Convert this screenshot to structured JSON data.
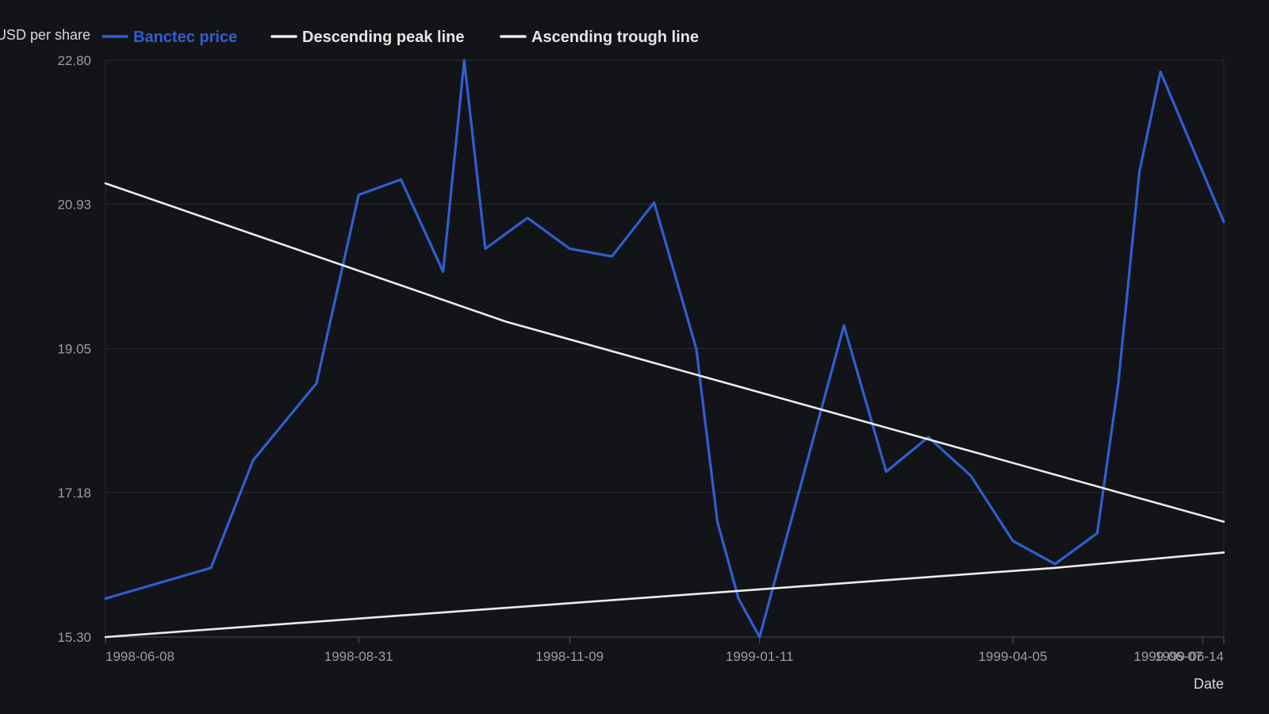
{
  "chart_data": {
    "type": "line",
    "ylabel": "USD per share",
    "xlabel": "Date",
    "ylim": [
      15.3,
      22.8
    ],
    "xlim": [
      "1998-06-08",
      "1999-06-14"
    ],
    "grid": true,
    "legend_position": "top-left",
    "y_ticks": [
      "15.30",
      "17.18",
      "19.05",
      "20.93",
      "22.80"
    ],
    "x_ticks": [
      "1998-06-08",
      "1998-08-31",
      "1998-11-09",
      "1999-01-11",
      "1999-04-05",
      "1999-06-07",
      "1999-06-14"
    ],
    "series": [
      {
        "name": "Banctec price",
        "color": "#2f5fd0",
        "points": [
          {
            "x": "1998-06-08",
            "y": 15.8
          },
          {
            "x": "1998-07-13",
            "y": 16.2
          },
          {
            "x": "1998-07-27",
            "y": 17.6
          },
          {
            "x": "1998-08-17",
            "y": 18.6
          },
          {
            "x": "1998-08-31",
            "y": 21.05
          },
          {
            "x": "1998-09-14",
            "y": 21.25
          },
          {
            "x": "1998-09-28",
            "y": 20.05
          },
          {
            "x": "1998-10-05",
            "y": 22.8
          },
          {
            "x": "1998-10-12",
            "y": 20.35
          },
          {
            "x": "1998-10-26",
            "y": 20.75
          },
          {
            "x": "1998-11-09",
            "y": 20.35
          },
          {
            "x": "1998-11-23",
            "y": 20.25
          },
          {
            "x": "1998-12-07",
            "y": 20.95
          },
          {
            "x": "1998-12-21",
            "y": 19.05
          },
          {
            "x": "1998-12-28",
            "y": 16.8
          },
          {
            "x": "1999-01-04",
            "y": 15.8
          },
          {
            "x": "1999-01-11",
            "y": 15.3
          },
          {
            "x": "1999-02-08",
            "y": 19.35
          },
          {
            "x": "1999-02-22",
            "y": 17.45
          },
          {
            "x": "1999-03-08",
            "y": 17.9
          },
          {
            "x": "1999-03-22",
            "y": 17.4
          },
          {
            "x": "1999-04-05",
            "y": 16.55
          },
          {
            "x": "1999-04-19",
            "y": 16.25
          },
          {
            "x": "1999-05-03",
            "y": 16.65
          },
          {
            "x": "1999-05-10",
            "y": 18.6
          },
          {
            "x": "1999-05-17",
            "y": 21.35
          },
          {
            "x": "1999-05-24",
            "y": 22.65
          },
          {
            "x": "1999-06-14",
            "y": 20.7
          }
        ]
      },
      {
        "name": "Descending peak line",
        "color": "#ececec",
        "points": [
          {
            "x": "1998-06-08",
            "y": 21.2
          },
          {
            "x": "1998-10-19",
            "y": 19.4
          },
          {
            "x": "1999-06-14",
            "y": 16.8
          }
        ]
      },
      {
        "name": "Ascending trough line",
        "color": "#ececec",
        "points": [
          {
            "x": "1998-06-08",
            "y": 15.3
          },
          {
            "x": "1999-04-19",
            "y": 16.2
          },
          {
            "x": "1999-06-14",
            "y": 16.4
          }
        ]
      }
    ]
  }
}
